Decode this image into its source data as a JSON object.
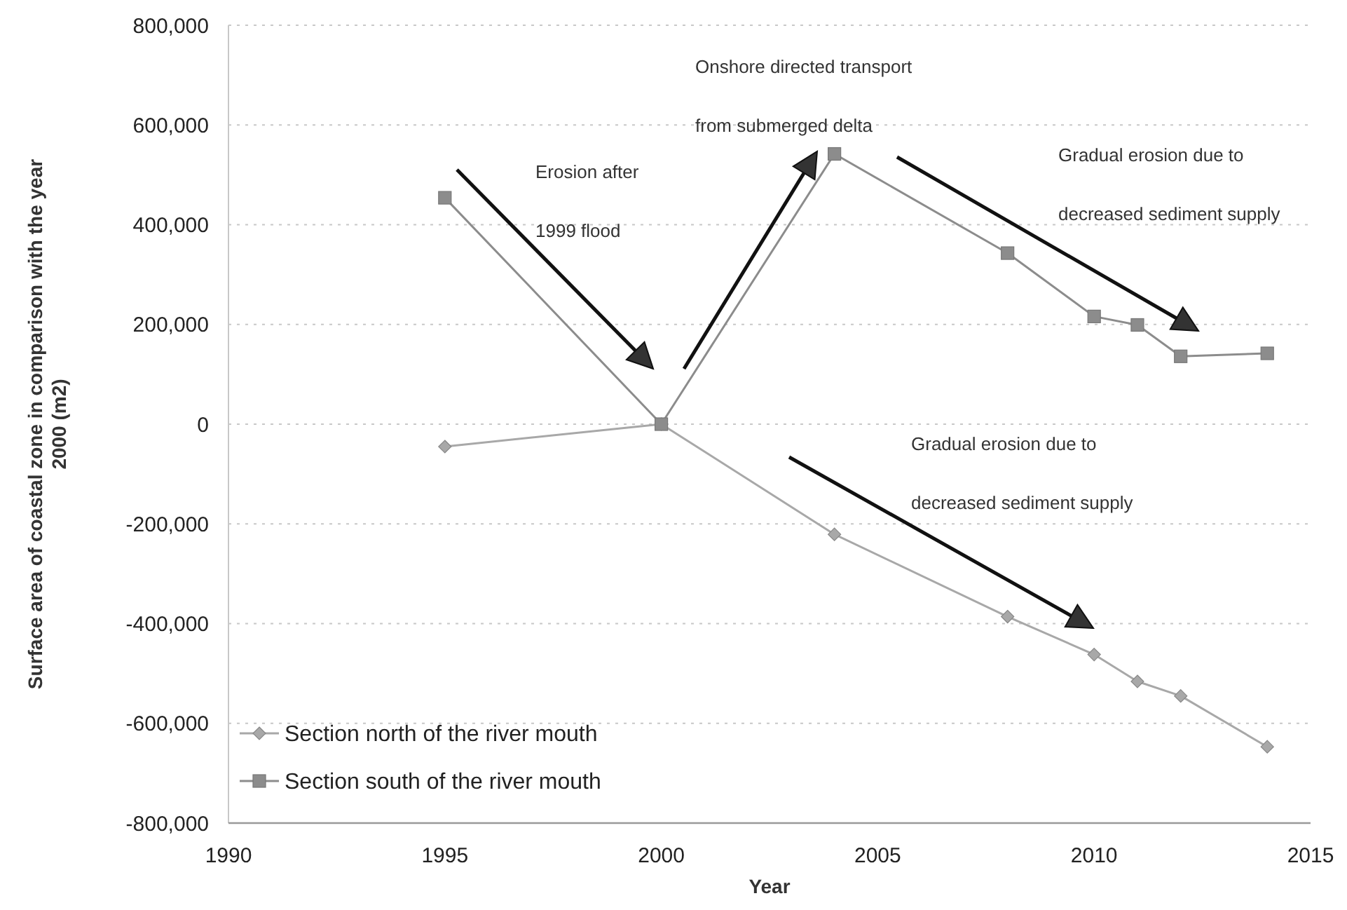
{
  "chart_data": {
    "type": "line",
    "xlabel": "Year",
    "ylabel": "Surface area of coastal zone in comparison with the year 2000 (m2)",
    "xlim": [
      1990,
      2015
    ],
    "xticks": [
      1990,
      1995,
      2000,
      2005,
      2010,
      2015
    ],
    "ylim": [
      -800000,
      800000
    ],
    "yticks": [
      {
        "value": -800000,
        "label": "-800,000"
      },
      {
        "value": -600000,
        "label": "-600,000"
      },
      {
        "value": -400000,
        "label": "-400,000"
      },
      {
        "value": -200000,
        "label": "-200,000"
      },
      {
        "value": 0,
        "label": "0"
      },
      {
        "value": 200000,
        "label": "200,000"
      },
      {
        "value": 400000,
        "label": "400,000"
      },
      {
        "value": 600000,
        "label": "600,000"
      },
      {
        "value": 800000,
        "label": "800,000"
      }
    ],
    "grid": "y",
    "legend": "bottom left",
    "series": [
      {
        "name": "Section north of the river mouth",
        "color": "#a8a8a8",
        "marker": "diamond",
        "x": [
          1995,
          2000,
          2004,
          2008,
          2010,
          2011,
          2012,
          2014
        ],
        "values": [
          -45000,
          0,
          -221000,
          -386000,
          -462000,
          -516000,
          -545000,
          -647000
        ]
      },
      {
        "name": "Section south of the river mouth",
        "color": "#8c8c8c",
        "marker": "square",
        "x": [
          1995,
          2000,
          2004,
          2008,
          2010,
          2011,
          2012,
          2014
        ],
        "values": [
          454000,
          0,
          542000,
          343000,
          216000,
          199000,
          136000,
          142000
        ]
      }
    ],
    "annotations": [
      "Erosion after\n1999 flood",
      "Onshore directed transport\nfrom submerged delta",
      "Gradual erosion due to\ndecreased sediment supply",
      "Gradual erosion due to\ndecreased sediment supply"
    ]
  }
}
